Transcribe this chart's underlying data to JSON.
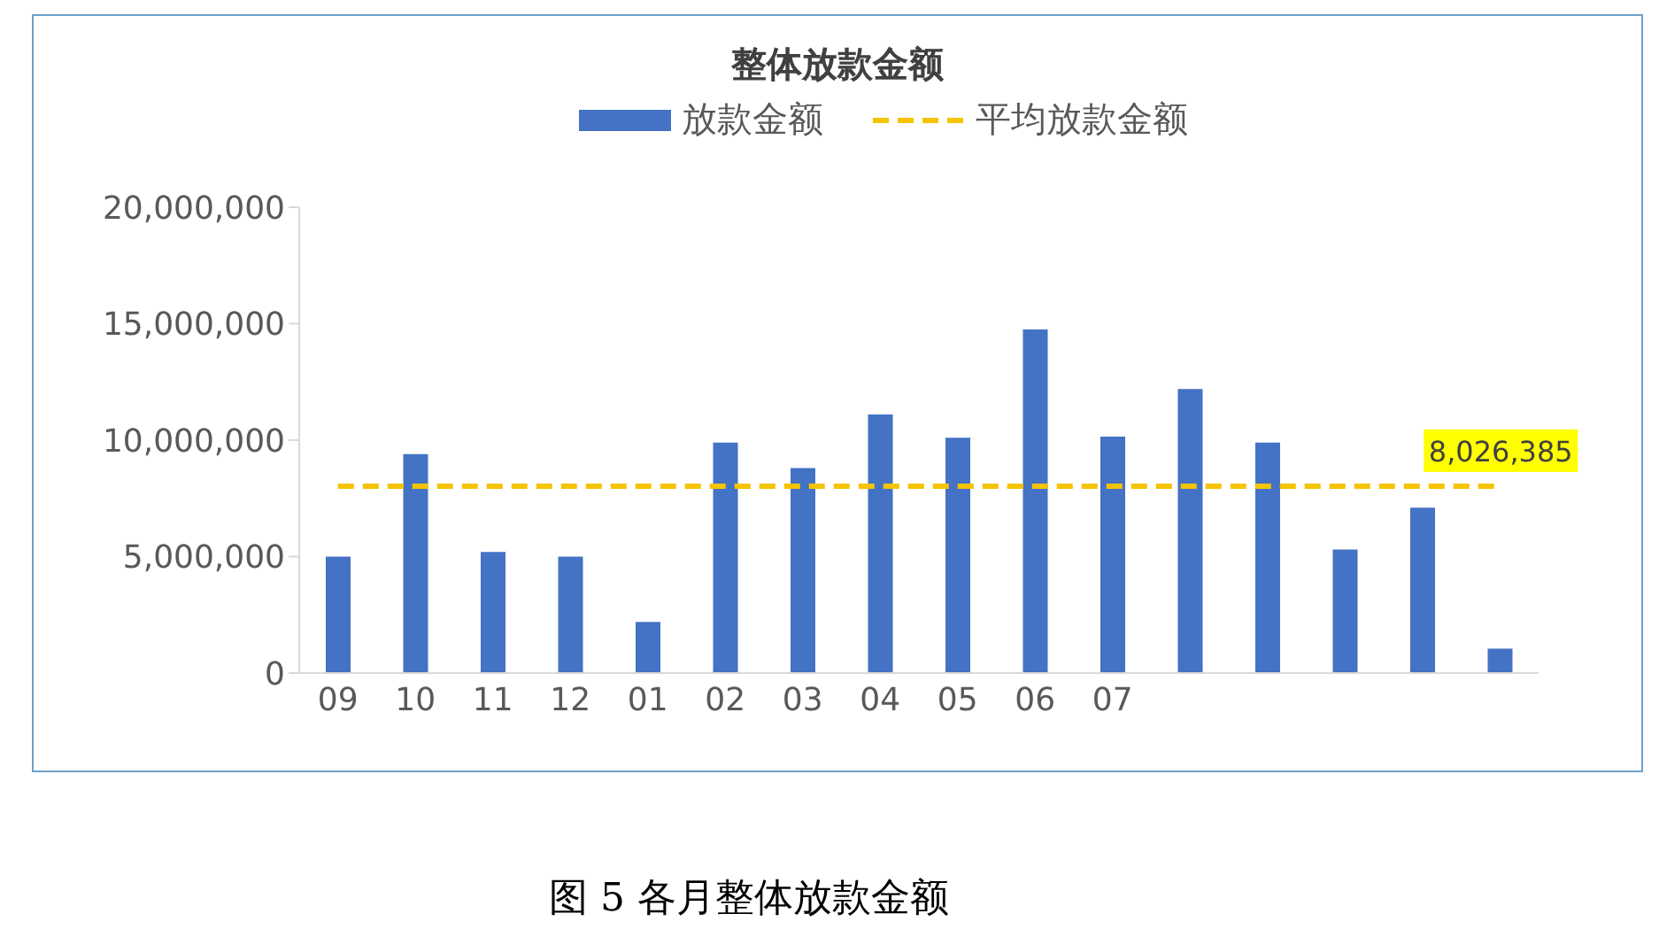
{
  "chart_data": {
    "type": "bar",
    "title": "整体放款金额",
    "categories": [
      "09",
      "10",
      "11",
      "12",
      "01",
      "02",
      "03",
      "04",
      "05",
      "06",
      "07",
      null,
      null,
      null,
      null,
      null
    ],
    "series": [
      {
        "name": "放款金额",
        "color": "#4472c4",
        "values": [
          5000000,
          9400000,
          5200000,
          5000000,
          2200000,
          9900000,
          8800000,
          11100000,
          10100000,
          14750000,
          10150000,
          12200000,
          9900000,
          5300000,
          7100000,
          1050000
        ]
      },
      {
        "type": "line",
        "name": "平均放款金额",
        "color": "#f5c400",
        "line_style": "dashed",
        "marker": "none",
        "values": [
          8026385,
          8026385,
          8026385,
          8026385,
          8026385,
          8026385,
          8026385,
          8026385,
          8026385,
          8026385,
          8026385,
          8026385,
          8026385,
          8026385,
          8026385,
          8026385
        ],
        "value_labels": [
          null,
          null,
          null,
          null,
          null,
          null,
          null,
          null,
          null,
          null,
          null,
          null,
          null,
          null,
          null,
          "8,026,385"
        ]
      }
    ],
    "ylim": [
      0,
      20000000
    ],
    "yticks": [
      0,
      {
        "value": 5000000,
        "label": "5,000,000"
      },
      {
        "value": 10000000,
        "label": "10,000,000"
      },
      {
        "value": 15000000,
        "label": "15,000,000"
      },
      {
        "value": 20000000,
        "label": "20,000,000"
      }
    ],
    "grid": false,
    "legend": "top",
    "annotations": [
      "图 5 各月整体放款金额"
    ]
  }
}
